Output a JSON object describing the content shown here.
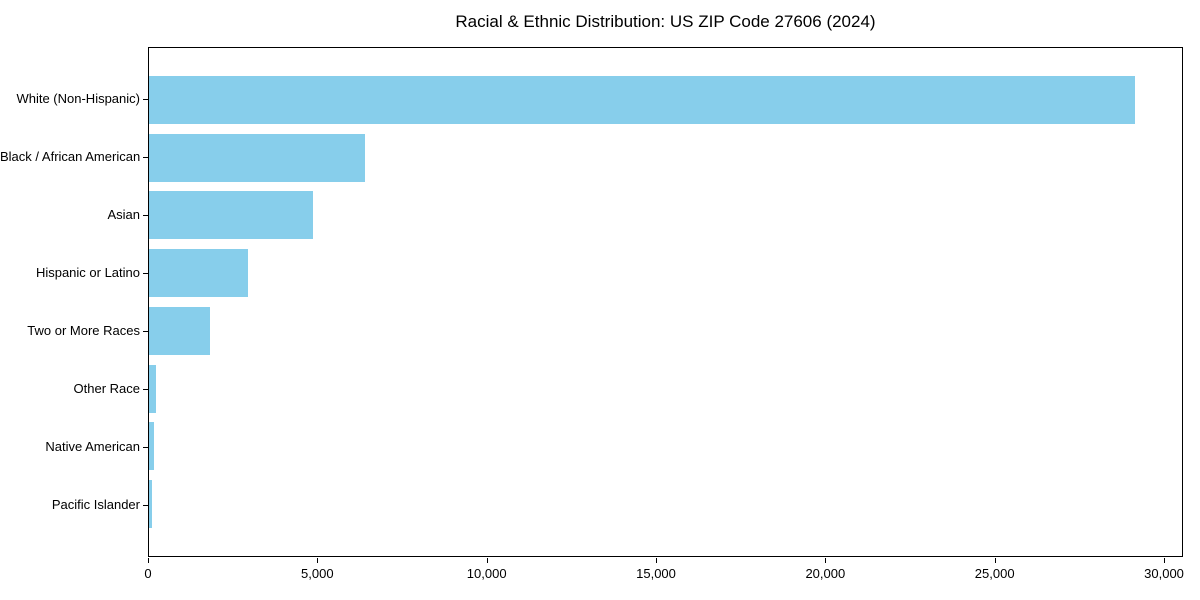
{
  "figure": {
    "background_color": "#ffffff",
    "spine_color": "#000000",
    "text_color": "#000000"
  },
  "chart_data": {
    "type": "bar",
    "orientation": "horizontal",
    "title": "Racial & Ethnic Distribution: US ZIP Code 27606 (2024)",
    "categories": [
      "White (Non-Hispanic)",
      "Black / African American",
      "Asian",
      "Hispanic or Latino",
      "Two or More Races",
      "Other Race",
      "Native American",
      "Pacific Islander"
    ],
    "values": [
      29160,
      6390,
      4840,
      2930,
      1790,
      215,
      135,
      85
    ],
    "bar_color": "#87CEEB",
    "xlabel": "",
    "ylabel": "",
    "xlim": [
      0,
      30560
    ],
    "x_ticks": [
      {
        "value": 0,
        "label": "0"
      },
      {
        "value": 5000,
        "label": "5,000"
      },
      {
        "value": 10000,
        "label": "10,000"
      },
      {
        "value": 15000,
        "label": "15,000"
      },
      {
        "value": 20000,
        "label": "20,000"
      },
      {
        "value": 25000,
        "label": "25,000"
      },
      {
        "value": 30000,
        "label": "30,000"
      }
    ],
    "grid": false,
    "legend": null
  }
}
